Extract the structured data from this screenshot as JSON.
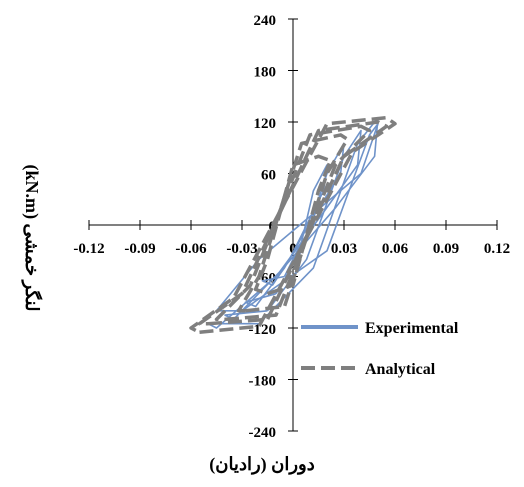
{
  "chart_data": {
    "type": "line",
    "title": "",
    "xlabel": "دوران (رادیان)",
    "ylabel": "لنگر خمشی (kN.m)",
    "xlim": [
      -0.12,
      0.12
    ],
    "ylim": [
      -240,
      240
    ],
    "x_ticks": [
      -0.12,
      -0.09,
      -0.06,
      -0.03,
      0,
      0.03,
      0.06,
      0.09,
      0.12
    ],
    "x_tick_labels": [
      "-0.12",
      "-0.09",
      "-0.06",
      "-0.03",
      "0",
      "0.03",
      "0.06",
      "0.09",
      "0.12"
    ],
    "y_ticks": [
      240,
      180,
      120,
      60,
      0,
      -60,
      -120,
      -180,
      -240
    ],
    "y_tick_labels": [
      "240",
      "180",
      "120",
      "60",
      "0",
      "-60",
      "-120",
      "-180",
      "-240"
    ],
    "grid": false,
    "legend_position": "bottom-right",
    "series": [
      {
        "name": "Experimental",
        "color": "#6f93c9",
        "style": "solid",
        "loops": [
          [
            [
              -0.005,
              -60
            ],
            [
              0.005,
              -20
            ],
            [
              0.012,
              40
            ],
            [
              0.02,
              70
            ],
            [
              0.018,
              40
            ],
            [
              0.008,
              0
            ],
            [
              -0.002,
              -40
            ],
            [
              -0.012,
              -70
            ],
            [
              -0.018,
              -65
            ],
            [
              -0.005,
              -60
            ]
          ],
          [
            [
              -0.01,
              -80
            ],
            [
              0.005,
              -30
            ],
            [
              0.02,
              60
            ],
            [
              0.03,
              95
            ],
            [
              0.028,
              60
            ],
            [
              0.012,
              10
            ],
            [
              -0.005,
              -50
            ],
            [
              -0.022,
              -95
            ],
            [
              -0.028,
              -90
            ],
            [
              -0.01,
              -80
            ]
          ],
          [
            [
              -0.015,
              -100
            ],
            [
              0.008,
              -40
            ],
            [
              0.03,
              80
            ],
            [
              0.04,
              110
            ],
            [
              0.038,
              70
            ],
            [
              0.018,
              15
            ],
            [
              -0.008,
              -55
            ],
            [
              -0.035,
              -110
            ],
            [
              -0.04,
              -105
            ],
            [
              -0.015,
              -100
            ]
          ],
          [
            [
              -0.02,
              -115
            ],
            [
              0.012,
              -50
            ],
            [
              0.038,
              95
            ],
            [
              0.05,
              125
            ],
            [
              0.048,
              80
            ],
            [
              0.025,
              20
            ],
            [
              -0.01,
              -60
            ],
            [
              -0.045,
              -120
            ],
            [
              -0.05,
              -115
            ],
            [
              -0.02,
              -115
            ]
          ],
          [
            [
              -0.03,
              -100
            ],
            [
              0.02,
              -30
            ],
            [
              0.045,
              105
            ],
            [
              0.05,
              118
            ],
            [
              0.04,
              60
            ],
            [
              -0.02,
              -40
            ],
            [
              -0.045,
              -100
            ],
            [
              -0.03,
              -100
            ]
          ]
        ]
      },
      {
        "name": "Analytical",
        "color": "#7f7f7f",
        "style": "dashed",
        "loops": [
          [
            [
              -0.015,
              -80
            ],
            [
              0.0,
              -70
            ],
            [
              0.015,
              40
            ],
            [
              0.022,
              75
            ],
            [
              0.015,
              80
            ],
            [
              0.0,
              70
            ],
            [
              -0.015,
              -40
            ],
            [
              -0.022,
              -75
            ],
            [
              -0.015,
              -80
            ]
          ],
          [
            [
              -0.028,
              -100
            ],
            [
              -0.005,
              -95
            ],
            [
              0.02,
              60
            ],
            [
              0.032,
              100
            ],
            [
              0.028,
              105
            ],
            [
              0.005,
              95
            ],
            [
              -0.02,
              -60
            ],
            [
              -0.032,
              -100
            ],
            [
              -0.028,
              -100
            ]
          ],
          [
            [
              -0.04,
              -110
            ],
            [
              -0.01,
              -105
            ],
            [
              0.025,
              70
            ],
            [
              0.045,
              110
            ],
            [
              0.04,
              115
            ],
            [
              0.01,
              105
            ],
            [
              -0.025,
              -70
            ],
            [
              -0.045,
              -110
            ],
            [
              -0.04,
              -110
            ]
          ],
          [
            [
              -0.05,
              -115
            ],
            [
              -0.015,
              -110
            ],
            [
              0.03,
              80
            ],
            [
              0.055,
              115
            ],
            [
              0.05,
              120
            ],
            [
              0.015,
              110
            ],
            [
              -0.03,
              -80
            ],
            [
              -0.055,
              -115
            ],
            [
              -0.05,
              -115
            ]
          ],
          [
            [
              -0.055,
              -125
            ],
            [
              -0.02,
              -118
            ],
            [
              0.035,
              85
            ],
            [
              0.06,
              118
            ],
            [
              0.055,
              125
            ],
            [
              0.02,
              118
            ],
            [
              -0.035,
              -85
            ],
            [
              -0.06,
              -120
            ],
            [
              -0.055,
              -125
            ]
          ]
        ]
      }
    ]
  }
}
